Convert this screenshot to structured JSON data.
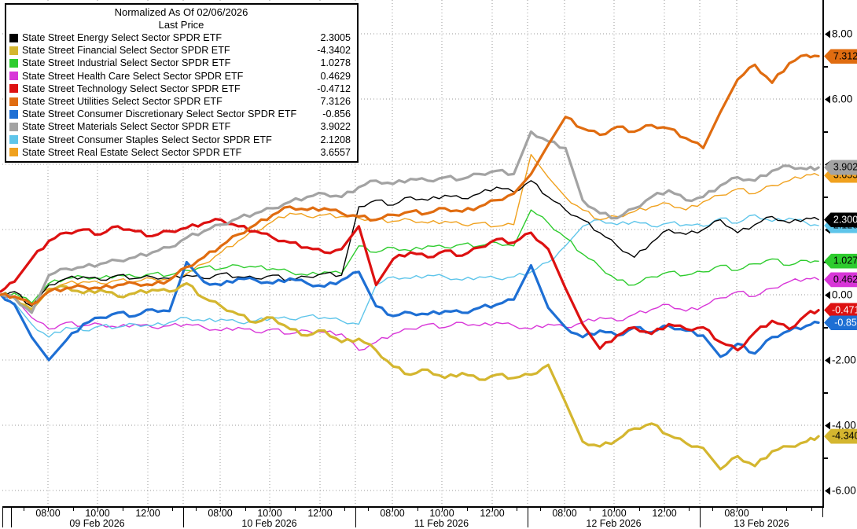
{
  "legend": {
    "title1": "Normalized As Of 02/06/2026",
    "title2": "Last Price"
  },
  "y_axis": {
    "major": [
      {
        "label": "8.00",
        "value": 8
      },
      {
        "label": "6.00",
        "value": 6
      },
      {
        "label": "4.00",
        "value": 4
      },
      {
        "label": "2.00",
        "value": 2
      },
      {
        "label": "0.00",
        "value": 0
      },
      {
        "label": "-2.00",
        "value": -2
      },
      {
        "label": "-4.00",
        "value": -4
      },
      {
        "label": "-6.00",
        "value": -6
      }
    ],
    "minor_values": [
      7,
      5,
      3,
      1,
      -1,
      -3,
      -5
    ]
  },
  "x_axis": {
    "days": [
      {
        "date": "09 Feb 2026",
        "times": [
          "08:00",
          "10:00",
          "12:00"
        ]
      },
      {
        "date": "10 Feb 2026",
        "times": [
          "08:00",
          "10:00",
          "12:00"
        ]
      },
      {
        "date": "11 Feb 2026",
        "times": [
          "08:00",
          "10:00",
          "12:00"
        ]
      },
      {
        "date": "12 Feb 2026",
        "times": [
          "08:00",
          "10:00",
          "12:00"
        ]
      },
      {
        "date": "13 Feb 2026",
        "times": [
          "08:00"
        ]
      }
    ]
  },
  "chart_data": {
    "type": "line",
    "title": "Normalized As Of 02/06/2026",
    "subtitle": "Last Price",
    "x_description": "Intraday, 09 Feb 2026 - 13 Feb 2026 (t in trading-day units)",
    "ylim": [
      -6.5,
      9.0
    ],
    "y_gridlines": [
      8,
      6,
      4,
      2,
      0,
      -2,
      -4,
      -6
    ],
    "legend_position": "top-left",
    "t": [
      -0.06,
      0.02,
      0.12,
      0.22,
      0.32,
      0.42,
      0.52,
      0.62,
      0.72,
      0.82,
      0.92,
      1.02,
      1.12,
      1.22,
      1.32,
      1.42,
      1.52,
      1.62,
      1.72,
      1.82,
      1.92,
      2.02,
      2.12,
      2.22,
      2.32,
      2.42,
      2.52,
      2.62,
      2.72,
      2.82,
      2.92,
      3.02,
      3.12,
      3.22,
      3.32,
      3.42,
      3.52,
      3.62,
      3.72,
      3.82,
      3.92,
      4.02,
      4.12,
      4.22,
      4.32,
      4.42,
      4.52,
      4.62,
      4.69
    ],
    "series": [
      {
        "name": "State Street Energy Select Sector SPDR ETF",
        "last_label": "2.3005",
        "color": "#000000",
        "badge_fg": "#ffffff",
        "thick": false,
        "values": [
          0.0,
          0.1,
          -0.35,
          0.3,
          0.5,
          0.55,
          0.45,
          0.6,
          0.5,
          0.55,
          0.5,
          0.6,
          0.5,
          0.65,
          0.55,
          0.5,
          0.6,
          0.45,
          0.55,
          0.65,
          0.6,
          2.7,
          2.9,
          2.75,
          3.0,
          2.9,
          3.05,
          2.95,
          3.1,
          3.3,
          3.15,
          3.5,
          3.0,
          2.6,
          2.3,
          1.9,
          1.5,
          1.15,
          1.6,
          2.0,
          1.85,
          2.0,
          2.3,
          1.9,
          2.15,
          2.4,
          2.2,
          2.35,
          2.3005
        ]
      },
      {
        "name": "State Street Financial Select Sector SPDR ETF",
        "last_label": "-4.3402",
        "color": "#d4b62f",
        "badge_fg": "#000000",
        "thick": true,
        "values": [
          0.0,
          -0.1,
          -0.45,
          0.15,
          0.25,
          0.05,
          0.15,
          -0.05,
          0.05,
          0.15,
          0.1,
          0.35,
          -0.1,
          -0.35,
          -0.6,
          -0.85,
          -0.7,
          -1.05,
          -1.25,
          -1.1,
          -1.45,
          -1.35,
          -1.7,
          -2.2,
          -2.45,
          -2.3,
          -2.55,
          -2.4,
          -2.6,
          -2.45,
          -2.55,
          -2.45,
          -2.15,
          -3.3,
          -4.5,
          -4.65,
          -4.45,
          -4.1,
          -3.95,
          -4.3,
          -4.55,
          -4.7,
          -5.35,
          -4.95,
          -5.25,
          -4.8,
          -4.65,
          -4.5,
          -4.3402
        ]
      },
      {
        "name": "State Street Industrial Select Sector SPDR ETF",
        "last_label": "1.0278",
        "color": "#2ecc2e",
        "badge_fg": "#000000",
        "thick": false,
        "values": [
          0.0,
          0.05,
          -0.25,
          0.35,
          0.5,
          0.55,
          0.5,
          0.6,
          0.55,
          0.65,
          0.6,
          0.75,
          0.85,
          0.8,
          0.9,
          0.85,
          0.8,
          0.7,
          0.6,
          0.7,
          0.65,
          1.5,
          1.3,
          1.45,
          1.35,
          1.5,
          1.45,
          1.55,
          1.5,
          1.6,
          1.5,
          2.6,
          2.2,
          1.75,
          1.25,
          0.85,
          0.45,
          0.3,
          0.55,
          0.7,
          0.6,
          0.7,
          0.9,
          0.75,
          0.95,
          1.1,
          0.9,
          1.05,
          1.0278
        ]
      },
      {
        "name": "State Street Health Care Select Sector SPDR ETF",
        "last_label": "0.4629",
        "color": "#d836d8",
        "badge_fg": "#000000",
        "thick": false,
        "values": [
          0.0,
          -0.1,
          -0.7,
          -1.05,
          -0.85,
          -0.95,
          -0.9,
          -1.0,
          -0.9,
          -1.0,
          -0.95,
          -0.9,
          -1.0,
          -1.1,
          -1.0,
          -1.15,
          -1.05,
          -1.2,
          -1.1,
          -1.15,
          -1.2,
          -1.7,
          -1.45,
          -1.2,
          -1.05,
          -0.9,
          -1.0,
          -0.85,
          -0.95,
          -0.85,
          -0.95,
          -1.05,
          -0.9,
          -1.0,
          -0.85,
          -0.7,
          -0.8,
          -0.6,
          -0.45,
          -0.3,
          -0.5,
          -0.35,
          -0.1,
          0.1,
          -0.05,
          0.2,
          0.4,
          0.5,
          0.4629
        ]
      },
      {
        "name": "State Street Technology Select Sector SPDR ETF",
        "last_label": "-0.4712",
        "color": "#dd1111",
        "badge_fg": "#ffffff",
        "thick": true,
        "values": [
          0.1,
          0.4,
          1.1,
          1.65,
          1.9,
          2.0,
          1.85,
          2.1,
          1.95,
          1.8,
          1.95,
          2.05,
          2.2,
          2.3,
          2.1,
          1.95,
          1.75,
          1.6,
          1.45,
          1.3,
          1.4,
          2.1,
          0.3,
          1.1,
          1.3,
          1.15,
          1.35,
          1.2,
          1.45,
          1.7,
          1.6,
          1.9,
          1.4,
          0.2,
          -0.9,
          -1.65,
          -1.25,
          -1.0,
          -1.2,
          -0.9,
          -1.05,
          -1.0,
          -1.45,
          -1.7,
          -1.15,
          -0.8,
          -1.05,
          -0.6,
          -0.4712
        ]
      },
      {
        "name": "State Street Utilities Select Sector SPDR ETF",
        "last_label": "7.3126",
        "color": "#e06c10",
        "badge_fg": "#000000",
        "thick": true,
        "values": [
          0.0,
          -0.05,
          -0.3,
          0.1,
          0.2,
          0.25,
          0.2,
          0.3,
          0.35,
          0.3,
          0.45,
          0.85,
          1.15,
          1.5,
          1.85,
          2.15,
          2.45,
          2.7,
          2.6,
          2.65,
          2.5,
          2.4,
          2.3,
          2.45,
          2.55,
          2.5,
          2.65,
          2.55,
          2.7,
          2.9,
          3.1,
          3.7,
          4.6,
          5.45,
          5.1,
          4.9,
          5.15,
          5.0,
          5.2,
          5.1,
          4.8,
          4.5,
          5.6,
          6.6,
          7.05,
          6.5,
          7.1,
          7.35,
          7.3126
        ]
      },
      {
        "name": "State Street Consumer Discretionary Select Sector SPDR ETF",
        "last_label": "-0.856",
        "color": "#1e6fd4",
        "badge_fg": "#ffffff",
        "thick": true,
        "values": [
          0.0,
          -0.3,
          -1.3,
          -2.0,
          -1.4,
          -0.9,
          -0.7,
          -0.55,
          -0.65,
          -0.45,
          -0.5,
          1.0,
          0.4,
          0.3,
          0.5,
          0.45,
          0.35,
          0.5,
          0.35,
          0.25,
          0.45,
          0.7,
          -0.35,
          -0.65,
          -0.55,
          -0.6,
          -0.5,
          -0.55,
          -0.4,
          -0.3,
          -0.15,
          0.9,
          -0.4,
          -1.0,
          -1.3,
          -1.1,
          -1.25,
          -1.0,
          -1.15,
          -0.95,
          -1.1,
          -1.25,
          -1.9,
          -1.5,
          -1.8,
          -1.3,
          -1.1,
          -0.95,
          -0.856
        ]
      },
      {
        "name": "State Street Materials Select Sector SPDR ETF",
        "last_label": "3.9022",
        "color": "#a3a3a3",
        "badge_fg": "#000000",
        "thick": true,
        "values": [
          0.0,
          -0.1,
          -0.55,
          0.6,
          0.8,
          0.85,
          0.95,
          1.05,
          1.15,
          1.3,
          1.45,
          1.75,
          1.95,
          2.15,
          2.35,
          2.5,
          2.65,
          2.85,
          3.0,
          3.1,
          3.0,
          3.3,
          3.5,
          3.4,
          3.55,
          3.5,
          3.6,
          3.55,
          3.7,
          3.8,
          3.7,
          5.0,
          4.7,
          4.5,
          2.9,
          2.5,
          2.35,
          2.65,
          3.0,
          3.2,
          2.9,
          3.0,
          3.35,
          3.6,
          3.5,
          3.8,
          3.95,
          3.85,
          3.9022
        ]
      },
      {
        "name": "State Street Consumer Staples Select Sector SPDR ETF",
        "last_label": "2.1208",
        "color": "#5ec5ea",
        "badge_fg": "#000000",
        "thick": false,
        "values": [
          0.0,
          -0.25,
          -0.9,
          -1.3,
          -1.0,
          -1.1,
          -0.95,
          -1.0,
          -0.9,
          -0.95,
          -0.85,
          -0.7,
          -0.8,
          -0.75,
          -0.85,
          -0.8,
          -0.7,
          -0.75,
          -0.65,
          -0.7,
          -0.8,
          -0.9,
          0.3,
          0.55,
          0.5,
          0.6,
          0.55,
          0.45,
          0.55,
          0.5,
          0.55,
          0.7,
          1.0,
          1.5,
          2.1,
          2.3,
          2.15,
          2.25,
          2.1,
          2.2,
          2.15,
          2.1,
          2.35,
          2.2,
          2.45,
          2.25,
          2.35,
          2.2,
          2.1208
        ]
      },
      {
        "name": "State Street Real Estate Select Sector SPDR ETF",
        "last_label": "3.6557",
        "color": "#f0a11e",
        "badge_fg": "#000000",
        "thick": false,
        "values": [
          0.0,
          -0.05,
          -0.3,
          0.2,
          0.35,
          0.4,
          0.35,
          0.45,
          0.4,
          0.5,
          0.45,
          0.65,
          0.95,
          1.3,
          1.65,
          1.95,
          2.25,
          2.5,
          2.4,
          2.45,
          2.4,
          2.35,
          2.3,
          2.25,
          2.3,
          2.2,
          2.25,
          2.15,
          2.2,
          2.1,
          2.15,
          4.3,
          3.6,
          3.0,
          2.6,
          2.3,
          2.4,
          2.55,
          2.7,
          2.8,
          2.6,
          2.85,
          3.05,
          3.25,
          3.1,
          3.35,
          3.5,
          3.68,
          3.6557
        ]
      }
    ]
  }
}
